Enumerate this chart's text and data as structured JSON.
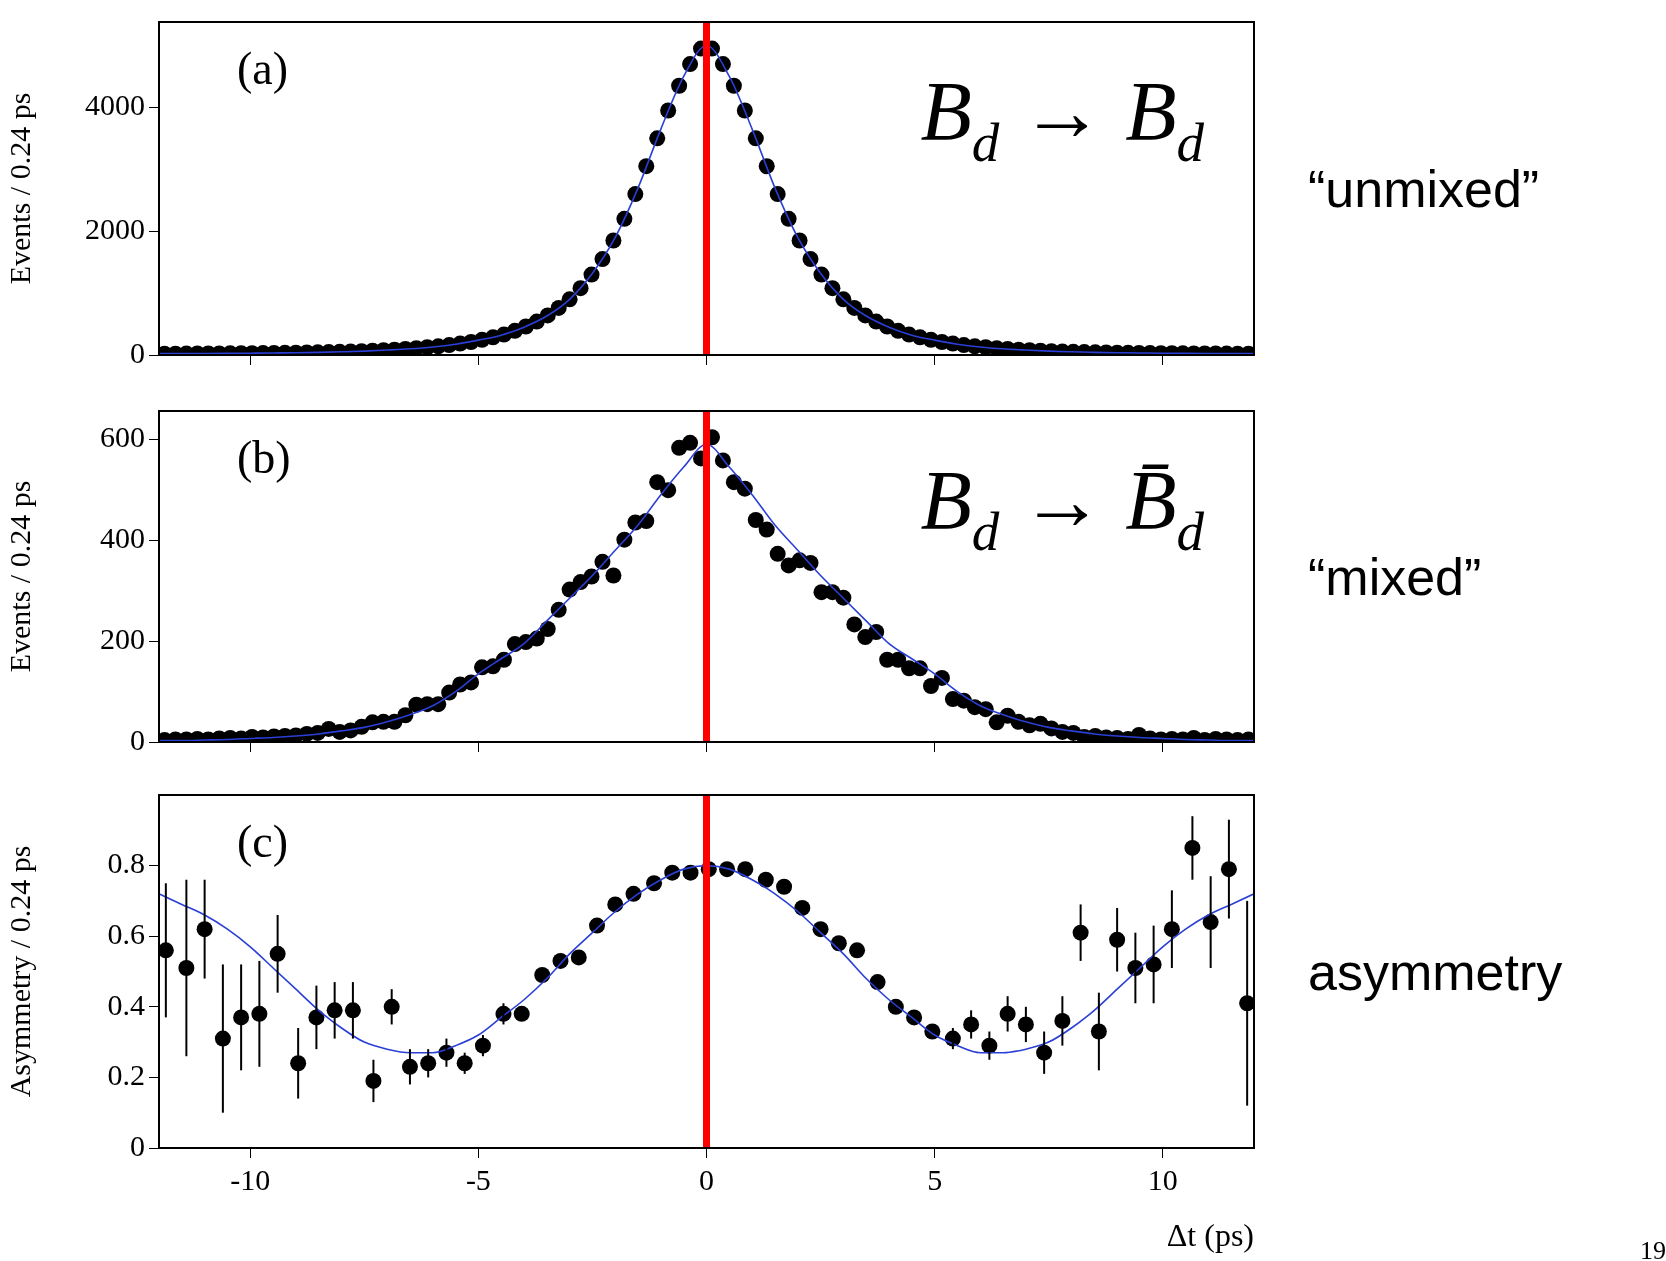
{
  "chart_data": [
    {
      "type": "scatter",
      "annotations": [
        "(a)",
        "B$_{d}$ → B$_{d}$",
        "“unmixed”"
      ],
      "ylabel": "Events / 0.24 ps",
      "xlim": [
        -12,
        12
      ],
      "xticks": [
        -10,
        -5,
        0,
        5,
        10
      ],
      "ylim": [
        0,
        5380
      ],
      "yticks": [
        0,
        2000,
        4000
      ],
      "tick_labels": "y",
      "marker": "circle",
      "ref_lines": [
        {
          "axis": "x",
          "value": 0,
          "color": "#ff0000"
        }
      ],
      "series": [
        {
          "color": "#000000",
          "x": [
            -11.88,
            -11.64,
            -11.4,
            -11.16,
            -10.92,
            -10.68,
            -10.44,
            -10.2,
            -9.96,
            -9.72,
            -9.48,
            -9.24,
            -9,
            -8.76,
            -8.52,
            -8.28,
            -8.04,
            -7.8,
            -7.56,
            -7.32,
            -7.08,
            -6.84,
            -6.6,
            -6.36,
            -6.12,
            -5.88,
            -5.64,
            -5.4,
            -5.16,
            -4.92,
            -4.68,
            -4.44,
            -4.2,
            -3.96,
            -3.72,
            -3.48,
            -3.24,
            -3,
            -2.76,
            -2.52,
            -2.28,
            -2.04,
            -1.8,
            -1.56,
            -1.32,
            -1.08,
            -0.84,
            -0.6,
            -0.36,
            -0.12,
            0.12,
            0.36,
            0.6,
            0.84,
            1.08,
            1.32,
            1.56,
            1.8,
            2.04,
            2.28,
            2.52,
            2.76,
            3,
            3.24,
            3.48,
            3.72,
            3.96,
            4.2,
            4.44,
            4.68,
            4.92,
            5.16,
            5.4,
            5.64,
            5.88,
            6.12,
            6.36,
            6.6,
            6.84,
            7.08,
            7.32,
            7.56,
            7.8,
            8.04,
            8.28,
            8.52,
            8.76,
            9,
            9.24,
            9.48,
            9.72,
            9.96,
            10.2,
            10.44,
            10.68,
            10.92,
            11.16,
            11.4,
            11.64,
            11.88
          ],
          "values": [
            22,
            22,
            23,
            24,
            25,
            26,
            27,
            28,
            29,
            31,
            33,
            35,
            37,
            40,
            43,
            47,
            51,
            56,
            62,
            69,
            77,
            86,
            97,
            110,
            125,
            140,
            160,
            185,
            210,
            245,
            285,
            330,
            390,
            460,
            540,
            640,
            760,
            900,
            1080,
            1300,
            1550,
            1850,
            2200,
            2600,
            3050,
            3500,
            3950,
            4350,
            4700,
            4950,
            4950,
            4700,
            4350,
            3950,
            3500,
            3050,
            2600,
            2200,
            1850,
            1550,
            1300,
            1080,
            900,
            760,
            640,
            540,
            460,
            390,
            330,
            285,
            245,
            210,
            185,
            160,
            140,
            125,
            110,
            97,
            86,
            77,
            69,
            62,
            56,
            51,
            47,
            43,
            40,
            37,
            35,
            33,
            31,
            29,
            28,
            27,
            26,
            25,
            24,
            23,
            22,
            22
          ]
        },
        {
          "type": "line",
          "color": "#2a3fd6",
          "marker": "none",
          "x": [
            -12,
            -11.5,
            -11,
            -10.5,
            -10,
            -9.5,
            -9,
            -8.5,
            -8,
            -7.5,
            -7,
            -6.5,
            -6,
            -5.5,
            -5,
            -4.5,
            -4,
            -3.5,
            -3,
            -2.5,
            -2,
            -1.5,
            -1,
            -0.5,
            0,
            0.5,
            1,
            1.5,
            2,
            2.5,
            3,
            3.5,
            4,
            4.5,
            5,
            5.5,
            6,
            6.5,
            7,
            7.5,
            8,
            8.5,
            9,
            9.5,
            10,
            10.5,
            11,
            11.5,
            12
          ],
          "values": [
            22,
            23,
            25,
            27,
            29,
            33,
            37,
            43,
            52,
            63,
            80,
            100,
            130,
            175,
            240,
            320,
            450,
            630,
            900,
            1320,
            1900,
            2700,
            3650,
            4500,
            5000,
            4500,
            3650,
            2700,
            1900,
            1320,
            900,
            630,
            450,
            320,
            240,
            175,
            130,
            100,
            80,
            63,
            52,
            43,
            37,
            33,
            29,
            27,
            25,
            23,
            22
          ]
        }
      ]
    },
    {
      "type": "scatter",
      "annotations": [
        "(b)",
        "B$_{d}$ → B̄$_{d}$",
        "“mixed”"
      ],
      "ylabel": "Events / 0.24 ps",
      "xlim": [
        -12,
        12
      ],
      "xticks": [
        -10,
        -5,
        0,
        5,
        10
      ],
      "ylim": [
        0,
        656
      ],
      "yticks": [
        0,
        200,
        400,
        600
      ],
      "tick_labels": "y",
      "marker": "circle",
      "ref_lines": [
        {
          "axis": "x",
          "value": 0,
          "color": "#ff0000"
        }
      ],
      "series": [
        {
          "color": "#000000",
          "x": [
            -11.88,
            -11.64,
            -11.4,
            -11.16,
            -10.92,
            -10.68,
            -10.44,
            -10.2,
            -9.96,
            -9.72,
            -9.48,
            -9.24,
            -9,
            -8.76,
            -8.52,
            -8.28,
            -8.04,
            -7.8,
            -7.56,
            -7.32,
            -7.08,
            -6.84,
            -6.6,
            -6.36,
            -6.12,
            -5.88,
            -5.64,
            -5.4,
            -5.16,
            -4.92,
            -4.68,
            -4.44,
            -4.2,
            -3.96,
            -3.72,
            -3.48,
            -3.24,
            -3,
            -2.76,
            -2.52,
            -2.28,
            -2.04,
            -1.8,
            -1.56,
            -1.32,
            -1.08,
            -0.84,
            -0.6,
            -0.36,
            -0.12,
            0.12,
            0.36,
            0.6,
            0.84,
            1.08,
            1.32,
            1.56,
            1.8,
            2.04,
            2.28,
            2.52,
            2.76,
            3,
            3.24,
            3.48,
            3.72,
            3.96,
            4.2,
            4.44,
            4.68,
            4.92,
            5.16,
            5.4,
            5.64,
            5.88,
            6.12,
            6.36,
            6.6,
            6.84,
            7.08,
            7.32,
            7.56,
            7.8,
            8.04,
            8.28,
            8.52,
            8.76,
            9,
            9.24,
            9.48,
            9.72,
            9.96,
            10.2,
            10.44,
            10.68,
            10.92,
            11.16,
            11.4,
            11.64,
            11.88
          ],
          "values": [
            4,
            5,
            5,
            6,
            5,
            7,
            8,
            7,
            10,
            9,
            11,
            12,
            13,
            16,
            18,
            26,
            20,
            23,
            30,
            39,
            40,
            40,
            53,
            74,
            75,
            75,
            98,
            114,
            118,
            148,
            150,
            163,
            194,
            198,
            205,
            224,
            262,
            302,
            317,
            328,
            357,
            330,
            401,
            435,
            438,
            515,
            499,
            583,
            593,
            562,
            604,
            558,
            515,
            502,
            440,
            421,
            373,
            350,
            360,
            355,
            297,
            297,
            286,
            233,
            208,
            218,
            163,
            163,
            146,
            146,
            111,
            127,
            85,
            82,
            69,
            65,
            39,
            52,
            40,
            33,
            36,
            27,
            20,
            18,
            10,
            12,
            9,
            8,
            6,
            14,
            7,
            5,
            6,
            5,
            8,
            4,
            6,
            5,
            4,
            5
          ]
        },
        {
          "type": "line",
          "color": "#2a3fd6",
          "marker": "none",
          "x": [
            -12,
            -11.5,
            -11,
            -10.5,
            -10,
            -9.5,
            -9,
            -8.5,
            -8,
            -7.5,
            -7,
            -6.5,
            -6,
            -5.5,
            -5,
            -4.5,
            -4,
            -3.5,
            -3,
            -2.5,
            -2,
            -1.5,
            -1,
            -0.5,
            0,
            0.5,
            1,
            1.5,
            2,
            2.5,
            3,
            3.5,
            4,
            4.5,
            5,
            5.5,
            6,
            6.5,
            7,
            7.5,
            8,
            8.5,
            9,
            9.5,
            10,
            10.5,
            11,
            11.5,
            12
          ],
          "values": [
            3,
            3,
            4,
            5,
            7,
            9,
            12,
            16,
            22,
            29,
            40,
            54,
            72,
            100,
            135,
            165,
            195,
            240,
            285,
            330,
            380,
            430,
            490,
            545,
            590,
            545,
            490,
            430,
            380,
            330,
            285,
            240,
            195,
            165,
            135,
            100,
            72,
            54,
            40,
            29,
            22,
            16,
            12,
            9,
            7,
            5,
            4,
            3,
            3
          ]
        }
      ]
    },
    {
      "type": "scatter",
      "annotations": [
        "(c)",
        "asymmetry",
        "19"
      ],
      "xlabel": "Δt (ps)",
      "ylabel": "Asymmetry / 0.24 ps",
      "xlim": [
        -12,
        12
      ],
      "xticks": [
        -10,
        -5,
        0,
        5,
        10
      ],
      "ylim": [
        0,
        1
      ],
      "yticks": [
        0,
        0.2,
        0.4,
        0.6,
        0.8
      ],
      "marker": "circle",
      "ref_lines": [
        {
          "axis": "x",
          "value": 0,
          "color": "#ff0000"
        }
      ],
      "series": [
        {
          "color": "#000000",
          "x": [
            -11.85,
            -11.4,
            -11,
            -10.6,
            -10.2,
            -9.8,
            -9.4,
            -8.95,
            -8.55,
            -8.15,
            -7.75,
            -7.3,
            -6.9,
            -6.5,
            -6.1,
            -5.7,
            -5.3,
            -4.9,
            -4.45,
            -4.05,
            -3.6,
            -3.2,
            -2.8,
            -2.4,
            -2,
            -1.6,
            -1.15,
            -0.75,
            -0.35,
            0.05,
            0.45,
            0.85,
            1.3,
            1.7,
            2.1,
            2.5,
            2.9,
            3.3,
            3.75,
            4.15,
            4.55,
            4.95,
            5.4,
            5.8,
            6.2,
            6.6,
            7,
            7.4,
            7.8,
            8.2,
            8.6,
            9,
            9.4,
            9.8,
            10.2,
            10.65,
            11.05,
            11.45,
            11.85
          ],
          "values": [
            0.56,
            0.51,
            0.62,
            0.31,
            0.37,
            0.38,
            0.55,
            0.24,
            0.37,
            0.39,
            0.39,
            0.19,
            0.4,
            0.23,
            0.24,
            0.27,
            0.24,
            0.29,
            0.38,
            0.38,
            0.49,
            0.53,
            0.54,
            0.63,
            0.69,
            0.72,
            0.75,
            0.78,
            0.78,
            0.79,
            0.79,
            0.79,
            0.76,
            0.74,
            0.68,
            0.62,
            0.58,
            0.56,
            0.47,
            0.4,
            0.37,
            0.33,
            0.31,
            0.35,
            0.29,
            0.38,
            0.35,
            0.27,
            0.36,
            0.61,
            0.33,
            0.59,
            0.51,
            0.52,
            0.62,
            0.85,
            0.64,
            0.79,
            0.41
          ],
          "errors": [
            0.19,
            0.25,
            0.14,
            0.21,
            0.15,
            0.15,
            0.11,
            0.1,
            0.09,
            0.08,
            0.08,
            0.06,
            0.05,
            0.05,
            0.04,
            0.04,
            0.03,
            0.03,
            0.03,
            0.02,
            null,
            null,
            null,
            null,
            null,
            null,
            null,
            null,
            null,
            null,
            null,
            null,
            null,
            null,
            null,
            null,
            null,
            null,
            null,
            null,
            null,
            null,
            0.03,
            0.04,
            0.04,
            0.05,
            0.05,
            0.06,
            0.07,
            0.08,
            0.11,
            0.09,
            0.1,
            0.11,
            0.11,
            0.09,
            0.13,
            0.14,
            0.29
          ]
        },
        {
          "type": "line",
          "color": "#2a3fd6",
          "marker": "none",
          "x": [
            -12,
            -11.5,
            -11,
            -10.5,
            -10,
            -9.5,
            -9,
            -8.5,
            -8,
            -7.5,
            -7,
            -6.5,
            -6,
            -5.5,
            -5,
            -4.5,
            -4,
            -3.5,
            -3,
            -2.5,
            -2,
            -1.5,
            -1,
            -0.5,
            0,
            0.5,
            1,
            1.5,
            2,
            2.5,
            3,
            3.5,
            4,
            4.5,
            5,
            5.5,
            6,
            6.5,
            7,
            7.5,
            8,
            8.5,
            9,
            9.5,
            10,
            10.5,
            11,
            11.5,
            12
          ],
          "values": [
            0.72,
            0.69,
            0.66,
            0.62,
            0.57,
            0.51,
            0.45,
            0.39,
            0.34,
            0.3,
            0.28,
            0.27,
            0.27,
            0.29,
            0.32,
            0.37,
            0.42,
            0.48,
            0.55,
            0.61,
            0.67,
            0.72,
            0.76,
            0.79,
            0.8,
            0.79,
            0.76,
            0.72,
            0.67,
            0.61,
            0.55,
            0.48,
            0.42,
            0.37,
            0.32,
            0.29,
            0.27,
            0.27,
            0.28,
            0.3,
            0.34,
            0.39,
            0.45,
            0.51,
            0.57,
            0.62,
            0.66,
            0.69,
            0.72
          ]
        }
      ]
    }
  ]
}
